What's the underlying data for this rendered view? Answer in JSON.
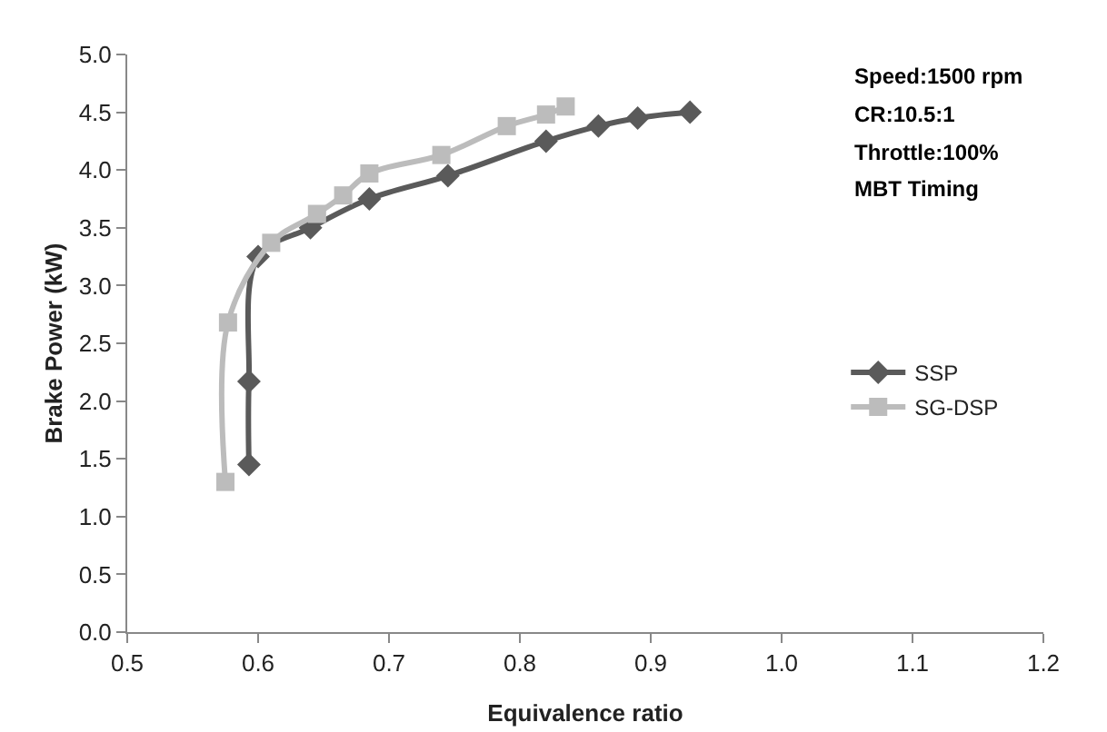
{
  "chart_data": {
    "type": "line",
    "xlabel": "Equivalence ratio",
    "ylabel": "Brake Power (kW)",
    "series": [
      {
        "name": "SSP",
        "color": "#5a5a5a",
        "marker": "diamond",
        "x": [
          0.593,
          0.593,
          0.6,
          0.64,
          0.685,
          0.745,
          0.82,
          0.86,
          0.89,
          0.93
        ],
        "values": [
          1.45,
          2.17,
          3.25,
          3.5,
          3.75,
          3.95,
          4.25,
          4.38,
          4.45,
          4.5
        ]
      },
      {
        "name": "SG-DSP",
        "color": "#bcbcbc",
        "marker": "square",
        "x": [
          0.575,
          0.577,
          0.61,
          0.645,
          0.665,
          0.685,
          0.74,
          0.79,
          0.82,
          0.835
        ],
        "values": [
          1.3,
          2.68,
          3.37,
          3.62,
          3.78,
          3.97,
          4.13,
          4.38,
          4.48,
          4.55
        ]
      }
    ],
    "xlim": [
      0.5,
      1.2
    ],
    "xticks": [
      {
        "value": 0.5,
        "label": "0.5"
      },
      {
        "value": 0.6,
        "label": "0.6"
      },
      {
        "value": 0.7,
        "label": "0.7"
      },
      {
        "value": 0.8,
        "label": "0.8"
      },
      {
        "value": 0.9,
        "label": "0.9"
      },
      {
        "value": 1.0,
        "label": "1.0"
      },
      {
        "value": 1.1,
        "label": "1.1"
      },
      {
        "value": 1.2,
        "label": "1.2"
      }
    ],
    "ylim": [
      0,
      5
    ],
    "yticks": [
      {
        "value": 0,
        "label": "0.0"
      },
      {
        "value": 0.5,
        "label": "0.5"
      },
      {
        "value": 1,
        "label": "1.0"
      },
      {
        "value": 1.5,
        "label": "1.5"
      },
      {
        "value": 2,
        "label": "2.0"
      },
      {
        "value": 2.5,
        "label": "2.5"
      },
      {
        "value": 3,
        "label": "3.0"
      },
      {
        "value": 3.5,
        "label": "3.5"
      },
      {
        "value": 4,
        "label": "4.0"
      },
      {
        "value": 4.5,
        "label": "4.5"
      },
      {
        "value": 5,
        "label": "5.0"
      }
    ],
    "annotations": [
      "Speed:1500 rpm",
      "CR:10.5:1",
      "Throttle:100%",
      "MBT Timing"
    ],
    "grid": false,
    "legend": "right",
    "line_style": "solid"
  }
}
